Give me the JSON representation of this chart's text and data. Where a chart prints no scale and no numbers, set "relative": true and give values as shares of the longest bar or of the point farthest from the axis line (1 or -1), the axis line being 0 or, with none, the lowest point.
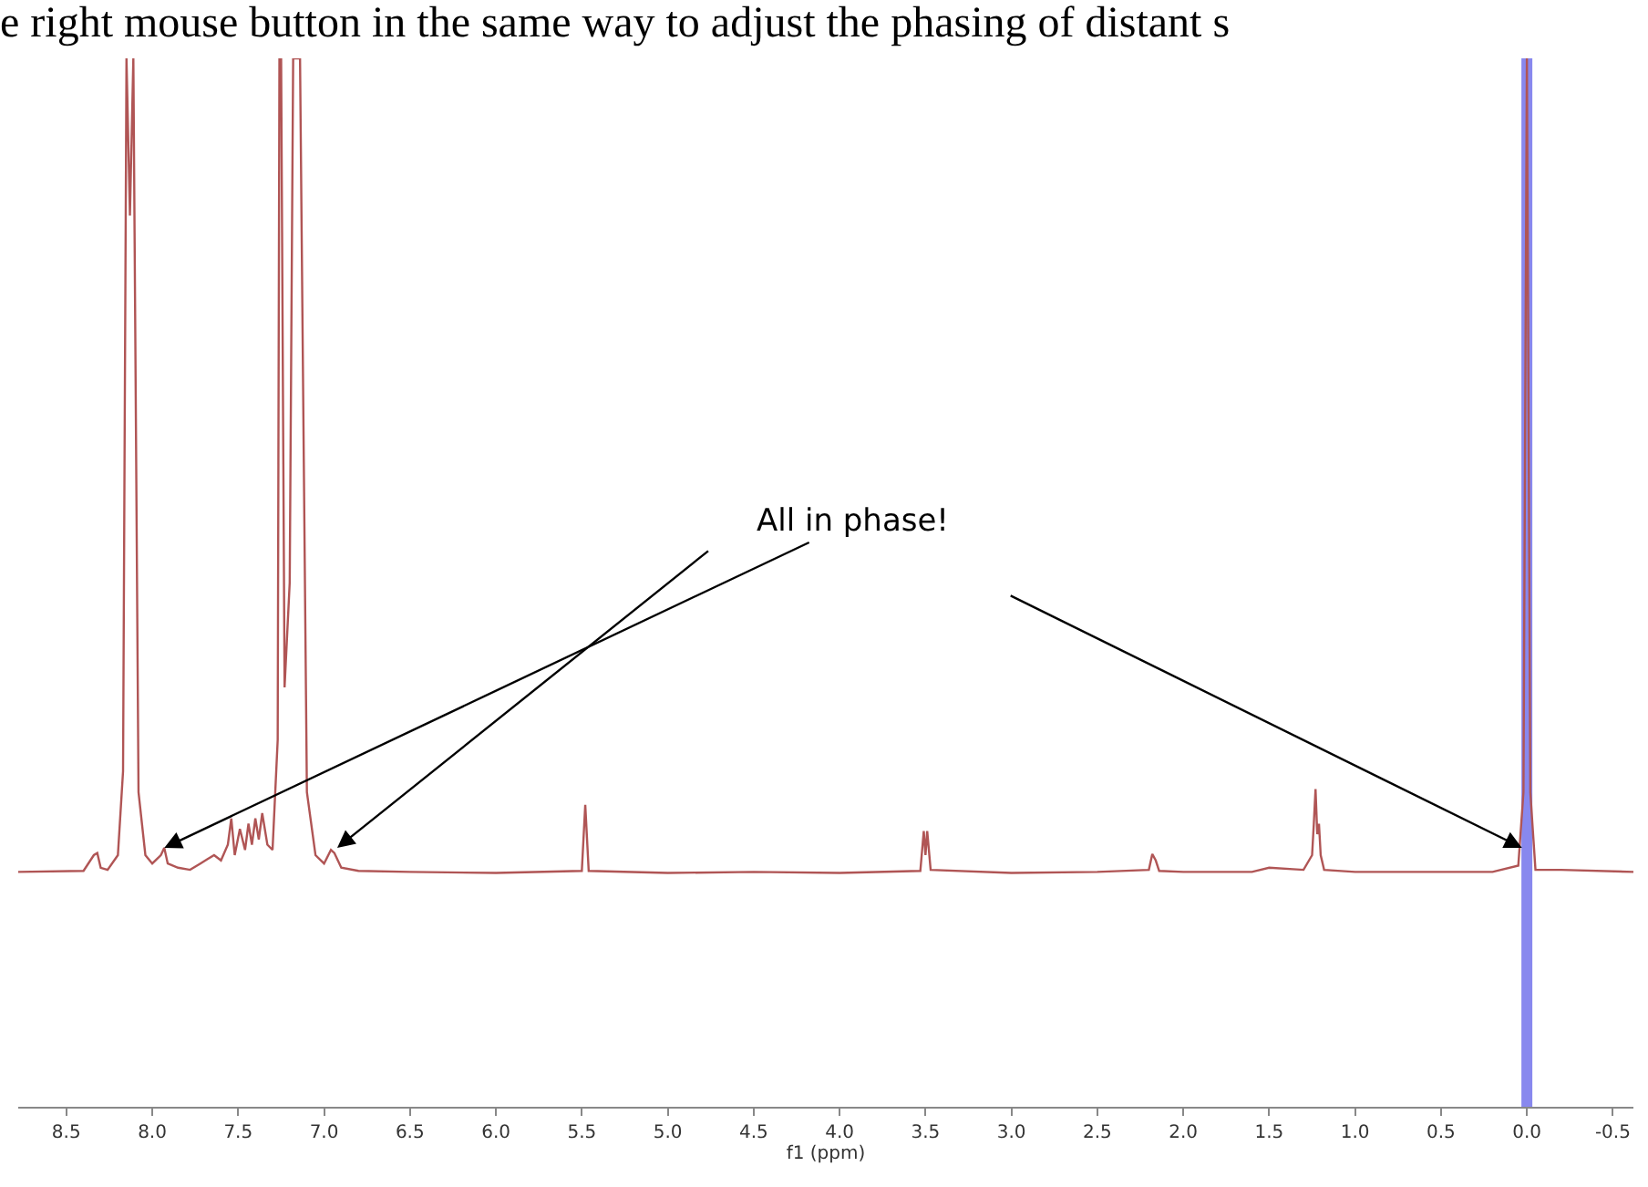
{
  "chart_data": {
    "type": "line",
    "relative": true,
    "title": "e right mouse button in the same way to adjust the phasing of distant s",
    "xlabel": "f1 (ppm)",
    "xlim": [
      8.78,
      -0.62
    ],
    "xticks": [
      8.5,
      {
        "value": 8,
        "label": "8.0"
      },
      7.5,
      {
        "value": 7,
        "label": "7.0"
      },
      6.5,
      {
        "value": 6,
        "label": "6.0"
      },
      5.5,
      {
        "value": 5,
        "label": "5.0"
      },
      4.5,
      {
        "value": 4,
        "label": "4.0"
      },
      3.5,
      {
        "value": 3,
        "label": "3.0"
      },
      2.5,
      {
        "value": 2,
        "label": "2.0"
      },
      1.5,
      {
        "value": 1,
        "label": "1.0"
      },
      0.5,
      {
        "value": 0,
        "label": "0.0"
      },
      -0.5
    ],
    "x": [
      8.78,
      8.4,
      8.34,
      8.32,
      8.3,
      8.26,
      8.2,
      8.17,
      8.15,
      8.13,
      8.11,
      8.08,
      8.04,
      8.0,
      7.95,
      7.93,
      7.91,
      7.85,
      7.78,
      7.72,
      7.68,
      7.64,
      7.6,
      7.56,
      7.54,
      7.52,
      7.49,
      7.46,
      7.44,
      7.42,
      7.4,
      7.38,
      7.36,
      7.33,
      7.3,
      7.27,
      7.26,
      7.25,
      7.23,
      7.2,
      7.18,
      7.16,
      7.14,
      7.1,
      7.05,
      7.0,
      6.96,
      6.94,
      6.9,
      6.8,
      6.5,
      6.0,
      5.5,
      5.48,
      5.46,
      5.0,
      4.5,
      4.0,
      3.53,
      3.51,
      3.5,
      3.49,
      3.47,
      3.0,
      2.5,
      2.2,
      2.18,
      2.16,
      2.14,
      2.0,
      1.6,
      1.5,
      1.3,
      1.25,
      1.24,
      1.23,
      1.22,
      1.21,
      1.2,
      1.18,
      1.0,
      0.5,
      0.2,
      0.05,
      0.02,
      0.0,
      -0.02,
      -0.05,
      -0.2,
      -0.62
    ],
    "series": [
      {
        "color": "#b05555",
        "values": [
          0.224,
          0.225,
          0.24,
          0.242,
          0.228,
          0.226,
          0.24,
          0.32,
          1,
          0.85,
          1,
          0.3,
          0.24,
          0.232,
          0.24,
          0.247,
          0.232,
          0.228,
          0.226,
          0.232,
          0.236,
          0.24,
          0.235,
          0.25,
          0.275,
          0.24,
          0.265,
          0.245,
          0.27,
          0.25,
          0.275,
          0.255,
          0.28,
          0.25,
          0.245,
          0.35,
          1,
          1,
          0.4,
          0.5,
          1,
          1,
          1,
          0.3,
          0.24,
          0.232,
          0.245,
          0.242,
          0.228,
          0.225,
          0.224,
          0.223,
          0.225,
          0.288,
          0.225,
          0.223,
          0.224,
          0.223,
          0.225,
          0.263,
          0.24,
          0.263,
          0.226,
          0.223,
          0.224,
          0.226,
          0.241,
          0.235,
          0.225,
          0.224,
          0.224,
          0.228,
          0.226,
          0.24,
          0.27,
          0.303,
          0.26,
          0.27,
          0.24,
          0.226,
          0.224,
          0.224,
          0.224,
          0.23,
          0.3,
          1,
          0.3,
          0.226,
          0.226,
          0.224
        ]
      }
    ],
    "ref_lines": [
      {
        "axis": "x",
        "value": 0.0,
        "color": "#8888ee"
      }
    ],
    "annotations": [
      {
        "text": "All in phase!",
        "x": 7.93,
        "y": 0.247
      }
    ],
    "marker": "none"
  }
}
